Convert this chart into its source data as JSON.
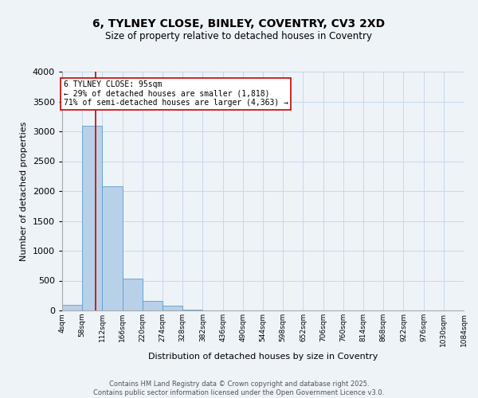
{
  "title_line1": "6, TYLNEY CLOSE, BINLEY, COVENTRY, CV3 2XD",
  "title_line2": "Size of property relative to detached houses in Coventry",
  "xlabel": "Distribution of detached houses by size in Coventry",
  "ylabel": "Number of detached properties",
  "bin_labels": [
    "4sqm",
    "58sqm",
    "112sqm",
    "166sqm",
    "220sqm",
    "274sqm",
    "328sqm",
    "382sqm",
    "436sqm",
    "490sqm",
    "544sqm",
    "598sqm",
    "652sqm",
    "706sqm",
    "760sqm",
    "814sqm",
    "868sqm",
    "922sqm",
    "976sqm",
    "1030sqm",
    "1084sqm"
  ],
  "bin_edges": [
    4,
    58,
    112,
    166,
    220,
    274,
    328,
    382,
    436,
    490,
    544,
    598,
    652,
    706,
    760,
    814,
    868,
    922,
    976,
    1030,
    1084
  ],
  "bar_heights": [
    100,
    3100,
    2080,
    540,
    160,
    80,
    20,
    5,
    2,
    1,
    0,
    0,
    0,
    0,
    0,
    0,
    0,
    0,
    0,
    0
  ],
  "bar_color": "#b8d0e8",
  "bar_edgecolor": "#5a9fd4",
  "grid_color": "#c8d8ea",
  "background_color": "#eef3f8",
  "red_line_x": 95,
  "annotation_text": "6 TYLNEY CLOSE: 95sqm\n← 29% of detached houses are smaller (1,818)\n71% of semi-detached houses are larger (4,363) →",
  "annotation_box_color": "#ffffff",
  "annotation_border_color": "#cc0000",
  "ylim": [
    0,
    4000
  ],
  "yticks": [
    0,
    500,
    1000,
    1500,
    2000,
    2500,
    3000,
    3500,
    4000
  ],
  "footer_line1": "Contains HM Land Registry data © Crown copyright and database right 2025.",
  "footer_line2": "Contains public sector information licensed under the Open Government Licence v3.0.",
  "red_line_color": "#cc0000",
  "fig_width": 6.0,
  "fig_height": 5.0,
  "dpi": 100
}
